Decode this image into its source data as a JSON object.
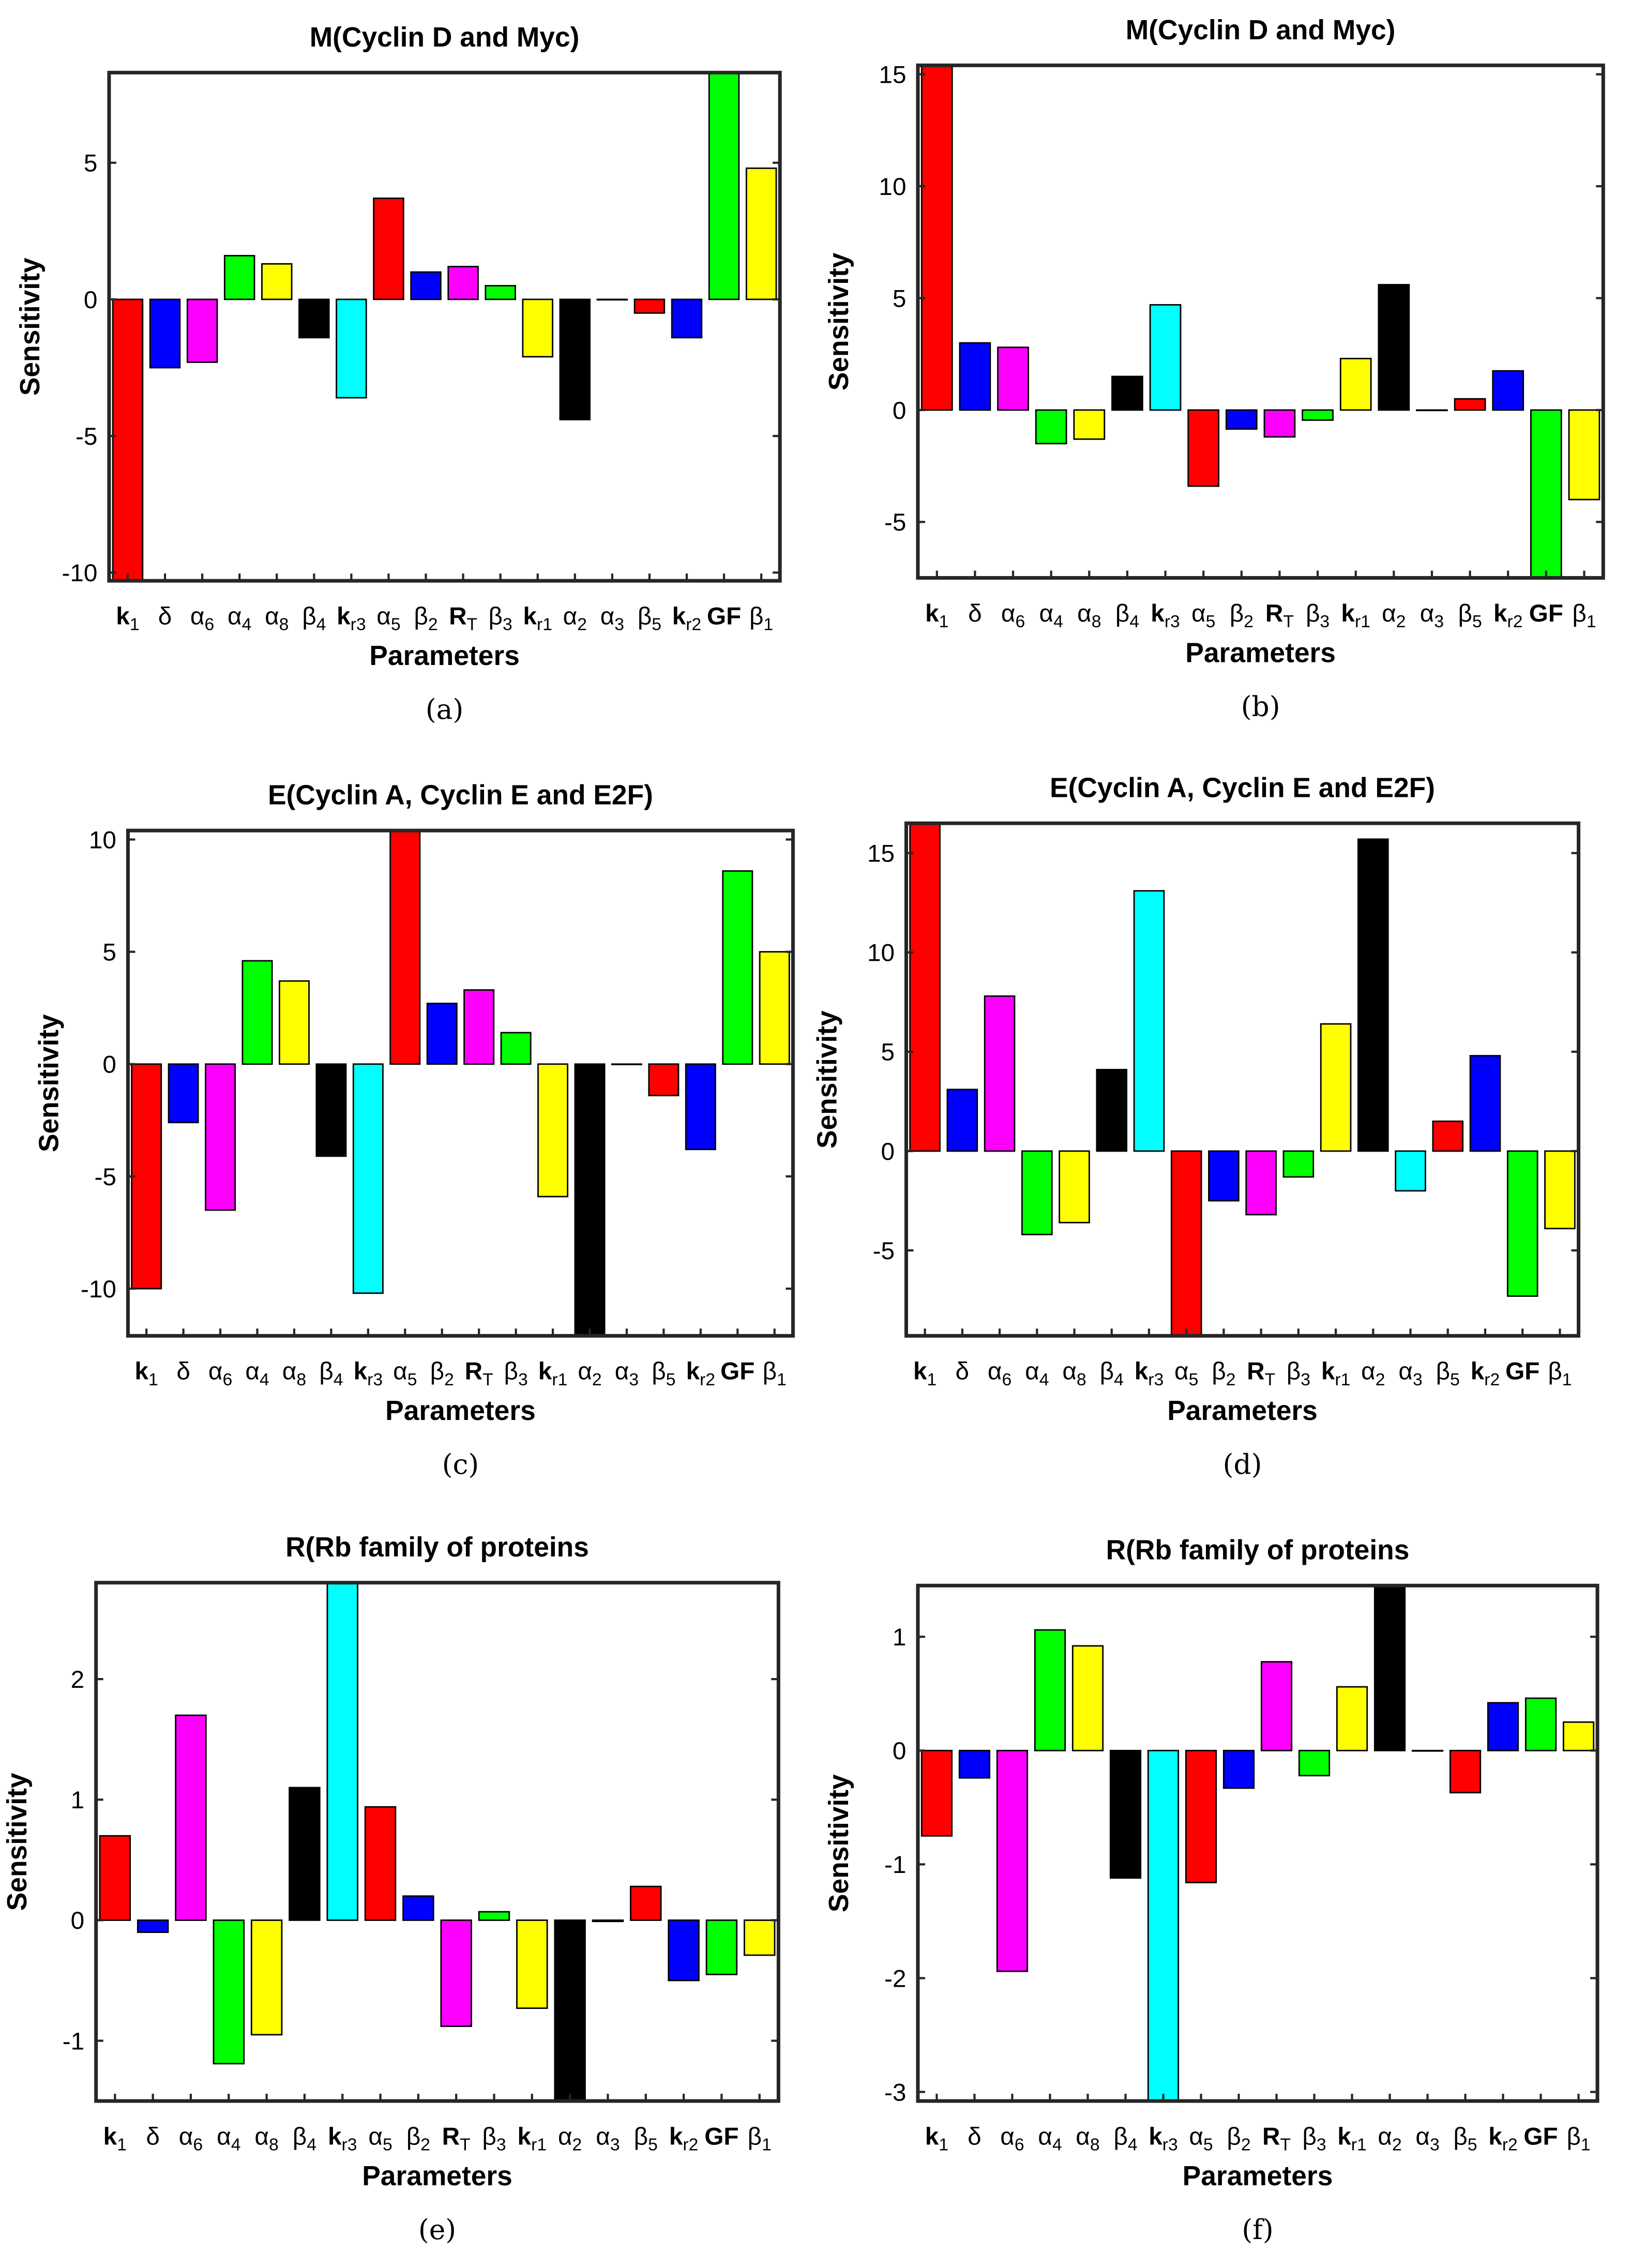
{
  "parameters": [
    {
      "main": "k",
      "sub": "1",
      "bold": true
    },
    {
      "main": "δ",
      "sub": "",
      "bold": false
    },
    {
      "main": "α",
      "sub": "6",
      "bold": false
    },
    {
      "main": "α",
      "sub": "4",
      "bold": false
    },
    {
      "main": "α",
      "sub": "8",
      "bold": false
    },
    {
      "main": "β",
      "sub": "4",
      "bold": false
    },
    {
      "main": "k",
      "sub": "r3",
      "bold": true
    },
    {
      "main": "α",
      "sub": "5",
      "bold": false
    },
    {
      "main": "β",
      "sub": "2",
      "bold": false
    },
    {
      "main": "R",
      "sub": "T",
      "bold": true
    },
    {
      "main": "β",
      "sub": "3",
      "bold": false
    },
    {
      "main": "k",
      "sub": "r1",
      "bold": true
    },
    {
      "main": "α",
      "sub": "2",
      "bold": false
    },
    {
      "main": "α",
      "sub": "3",
      "bold": false
    },
    {
      "main": "β",
      "sub": "5",
      "bold": false
    },
    {
      "main": "k",
      "sub": "r2",
      "bold": true
    },
    {
      "main": "GF",
      "sub": "",
      "bold": true
    },
    {
      "main": "β",
      "sub": "1",
      "bold": false
    }
  ],
  "bar_colors": [
    "#ff0000",
    "#0000ff",
    "#ff00ff",
    "#00ff00",
    "#ffff00",
    "#000000",
    "#00ffff",
    "#ff0000",
    "#0000ff",
    "#ff00ff",
    "#00ff00",
    "#ffff00",
    "#000000",
    "#00ffff",
    "#ff0000",
    "#0000ff",
    "#00ff00",
    "#ffff00"
  ],
  "chart_data": [
    {
      "type": "bar",
      "caption": "(a)",
      "title": "M(Cyclin D and Myc)",
      "xlabel": "Parameters",
      "ylabel": "Sensitivity",
      "ylim": [
        -10.3,
        8.3
      ],
      "yticks": [
        -10,
        -5,
        0,
        5
      ],
      "values": [
        -10.3,
        -2.5,
        -2.3,
        1.6,
        1.3,
        -1.4,
        -3.6,
        3.7,
        1.0,
        1.2,
        0.5,
        -2.1,
        -4.4,
        0,
        -0.5,
        -1.4,
        8.3,
        4.8
      ]
    },
    {
      "type": "bar",
      "caption": "(b)",
      "title": "M(Cyclin D and Myc)",
      "xlabel": "Parameters",
      "ylabel": "Sensitivity",
      "ylim": [
        -7.5,
        15.4
      ],
      "yticks": [
        -5,
        0,
        5,
        10,
        15
      ],
      "values": [
        15.4,
        3.0,
        2.8,
        -1.5,
        -1.3,
        1.5,
        4.7,
        -3.4,
        -0.85,
        -1.2,
        -0.45,
        2.3,
        5.6,
        0,
        0.5,
        1.75,
        -7.5,
        -4.0
      ]
    },
    {
      "type": "bar",
      "caption": "(c)",
      "title": "E(Cyclin A, Cyclin E and E2F)",
      "xlabel": "Parameters",
      "ylabel": "Sensitivity",
      "ylim": [
        -12.1,
        10.4
      ],
      "yticks": [
        -10,
        -5,
        0,
        5,
        10
      ],
      "values": [
        -10.0,
        -2.6,
        -6.5,
        4.6,
        3.7,
        -4.1,
        -10.2,
        10.4,
        2.7,
        3.3,
        1.4,
        -5.9,
        -12.1,
        0,
        -1.4,
        -3.8,
        8.6,
        5.0
      ]
    },
    {
      "type": "bar",
      "caption": "(d)",
      "title": "E(Cyclin A, Cyclin E and E2F)",
      "xlabel": "Parameters",
      "ylabel": "Sensitivity",
      "ylim": [
        -9.3,
        16.5
      ],
      "yticks": [
        -5,
        0,
        5,
        10,
        15
      ],
      "values": [
        16.5,
        3.1,
        7.8,
        -4.2,
        -3.6,
        4.1,
        13.1,
        -9.3,
        -2.5,
        -3.2,
        -1.3,
        6.4,
        15.7,
        -2.0,
        1.5,
        4.8,
        -7.3,
        -3.9
      ]
    },
    {
      "type": "bar",
      "caption": "(e)",
      "title": "R(Rb family of proteins",
      "xlabel": "Parameters",
      "ylabel": "Sensitivity",
      "ylim": [
        -1.5,
        2.8
      ],
      "yticks": [
        -1,
        0,
        1,
        2
      ],
      "values": [
        0.7,
        -0.1,
        1.7,
        -1.19,
        -0.95,
        1.1,
        2.8,
        0.94,
        0.2,
        -0.88,
        0.07,
        -0.73,
        -1.5,
        -0.01,
        0.28,
        -0.5,
        -0.45,
        -0.29
      ]
    },
    {
      "type": "bar",
      "caption": "(f)",
      "title": "R(Rb family of proteins",
      "xlabel": "Parameters",
      "ylabel": "Sensitivity",
      "ylim": [
        -3.08,
        1.45
      ],
      "yticks": [
        -3,
        -2,
        -1,
        0,
        1
      ],
      "values": [
        -0.75,
        -0.24,
        -1.94,
        1.06,
        0.92,
        -1.12,
        -3.08,
        -1.16,
        -0.33,
        0.78,
        -0.22,
        0.56,
        1.45,
        0,
        -0.37,
        0.42,
        0.46,
        0.25
      ]
    }
  ]
}
